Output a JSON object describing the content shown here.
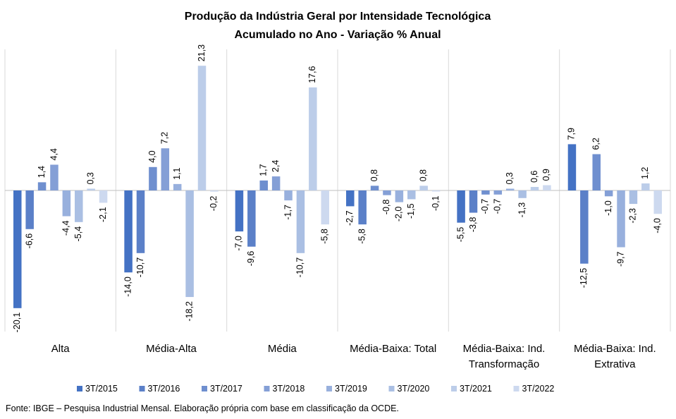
{
  "chart_data": {
    "type": "bar",
    "title": "Produção da Indústria Geral por Intensidade Tecnológica",
    "subtitle": "Acumulado no Ano - Variação % Anual",
    "categories": [
      [
        "Alta"
      ],
      [
        "Média-Alta"
      ],
      [
        "Média"
      ],
      [
        "Média-Baixa: Total"
      ],
      [
        "Média-Baixa: Ind.",
        "Transformação"
      ],
      [
        "Média-Baixa: Ind.",
        "Extrativa"
      ]
    ],
    "series": [
      {
        "name": "3T/2015",
        "color": "#4472c4",
        "values": [
          -20.1,
          -14.0,
          -7.0,
          -2.7,
          -5.5,
          7.9
        ],
        "labels": [
          "-20,1",
          "-14,0",
          "-7,0",
          "-2,7",
          "-5,5",
          "7,9"
        ]
      },
      {
        "name": "3T/2016",
        "color": "#5b80c8",
        "values": [
          -6.6,
          -10.7,
          -9.6,
          -5.8,
          -3.8,
          -12.5
        ],
        "labels": [
          "-6,6",
          "-10,7",
          "-9,6",
          "-5,8",
          "-3,8",
          "-12,5"
        ]
      },
      {
        "name": "3T/2017",
        "color": "#6f8fcf",
        "values": [
          1.4,
          4.0,
          1.7,
          0.8,
          -0.7,
          6.2
        ],
        "labels": [
          "1,4",
          "4,0",
          "1,7",
          "0,8",
          "-0,7",
          "6,2"
        ]
      },
      {
        "name": "3T/2018",
        "color": "#849fd6",
        "values": [
          4.4,
          7.2,
          2.4,
          -0.8,
          -0.7,
          -1.0
        ],
        "labels": [
          "4,4",
          "7,2",
          "2,4",
          "-0,8",
          "-0,7",
          "-1,0"
        ]
      },
      {
        "name": "3T/2019",
        "color": "#98b0dd",
        "values": [
          -4.4,
          1.1,
          -1.7,
          -2.0,
          0.3,
          -9.7
        ],
        "labels": [
          "-4,4",
          "1,1",
          "-1,7",
          "-2,0",
          "0,3",
          "-9,7"
        ]
      },
      {
        "name": "3T/2020",
        "color": "#aabfe3",
        "values": [
          -5.4,
          -18.2,
          -10.7,
          -1.5,
          -1.3,
          -2.3
        ],
        "labels": [
          "-5,4",
          "-18,2",
          "-10,7",
          "-1,5",
          "-1,3",
          "-2,3"
        ]
      },
      {
        "name": "3T/2021",
        "color": "#bccde9",
        "values": [
          0.3,
          21.3,
          17.6,
          0.8,
          0.6,
          1.2
        ],
        "labels": [
          "0,3",
          "21,3",
          "17,6",
          "0,8",
          "0,6",
          "1,2"
        ]
      },
      {
        "name": "3T/2022",
        "color": "#cdd9ef",
        "values": [
          -2.1,
          -0.2,
          -5.8,
          -0.1,
          0.9,
          -4.0
        ],
        "labels": [
          "-2,1",
          "-0,2",
          "-5,8",
          "-0,1",
          "0,9",
          "-4,0"
        ]
      }
    ],
    "legend_position": "bottom",
    "grid": false
  },
  "source": "Fonte: IBGE – Pesquisa Industrial Mensal. Elaboração própria com base em classificação da OCDE."
}
